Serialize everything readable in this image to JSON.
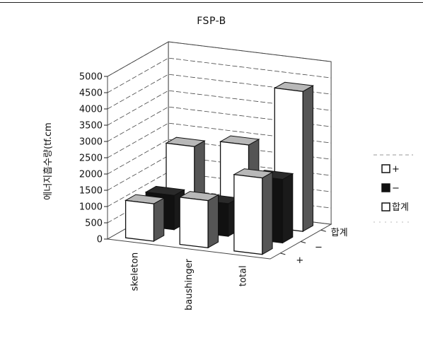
{
  "chart_data": {
    "type": "bar",
    "title": "FSP-B",
    "ylabel": "에너지흡수량(tf.cm",
    "xlabel": "",
    "categories": [
      "skeleton",
      "baushinger",
      "total"
    ],
    "depth_labels": [
      "+",
      "−",
      "합계"
    ],
    "ylim": [
      0,
      5000
    ],
    "yticks": [
      0,
      500,
      1000,
      1500,
      2000,
      2500,
      3000,
      3500,
      4000,
      4500,
      5000
    ],
    "grid": true,
    "legend_position": "right",
    "series": [
      {
        "name": "+",
        "values": [
          1150,
          1450,
          2350
        ]
      },
      {
        "name": "−",
        "values": [
          1050,
          1000,
          1950
        ]
      },
      {
        "name": "합계",
        "values": [
          2200,
          2450,
          4300
        ]
      }
    ],
    "colors": {
      "front": "#ffffff",
      "side_light": "#555555",
      "side_dark": "#1a1a1a",
      "top": "#b8b8b8",
      "grid": "#444444"
    }
  }
}
